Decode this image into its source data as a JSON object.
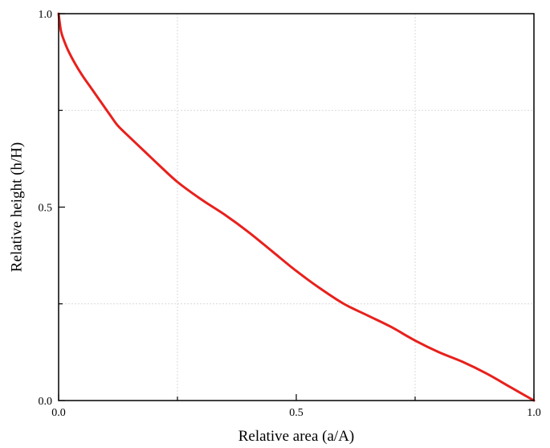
{
  "chart_data": {
    "type": "line",
    "title": "",
    "xlabel": "Relative area (a/A)",
    "ylabel": "Relative height (h/H)",
    "xlim": [
      0.0,
      1.0
    ],
    "ylim": [
      0.0,
      1.0
    ],
    "x_ticks": [
      0.0,
      0.5,
      1.0
    ],
    "y_ticks": [
      0.0,
      0.5,
      1.0
    ],
    "x_tick_labels": [
      "0.0",
      "0.5",
      "1.0"
    ],
    "y_tick_labels": [
      "0.0",
      "0.5",
      "1.0"
    ],
    "minor_x_ticks": [
      0.25,
      0.75
    ],
    "minor_y_ticks": [
      0.25,
      0.75
    ],
    "grid": true,
    "legend": "none",
    "series": [
      {
        "color": "#e8201c",
        "x": [
          0.0,
          0.002,
          0.005,
          0.01,
          0.02,
          0.035,
          0.05,
          0.07,
          0.09,
          0.11,
          0.125,
          0.15,
          0.18,
          0.21,
          0.25,
          0.3,
          0.35,
          0.4,
          0.45,
          0.5,
          0.55,
          0.6,
          0.65,
          0.7,
          0.75,
          0.8,
          0.85,
          0.9,
          0.95,
          1.0
        ],
        "y": [
          1.0,
          0.98,
          0.955,
          0.935,
          0.905,
          0.87,
          0.84,
          0.805,
          0.77,
          0.735,
          0.71,
          0.68,
          0.645,
          0.61,
          0.565,
          0.52,
          0.48,
          0.435,
          0.385,
          0.335,
          0.29,
          0.25,
          0.22,
          0.19,
          0.155,
          0.125,
          0.1,
          0.07,
          0.035,
          0.0
        ]
      }
    ]
  }
}
